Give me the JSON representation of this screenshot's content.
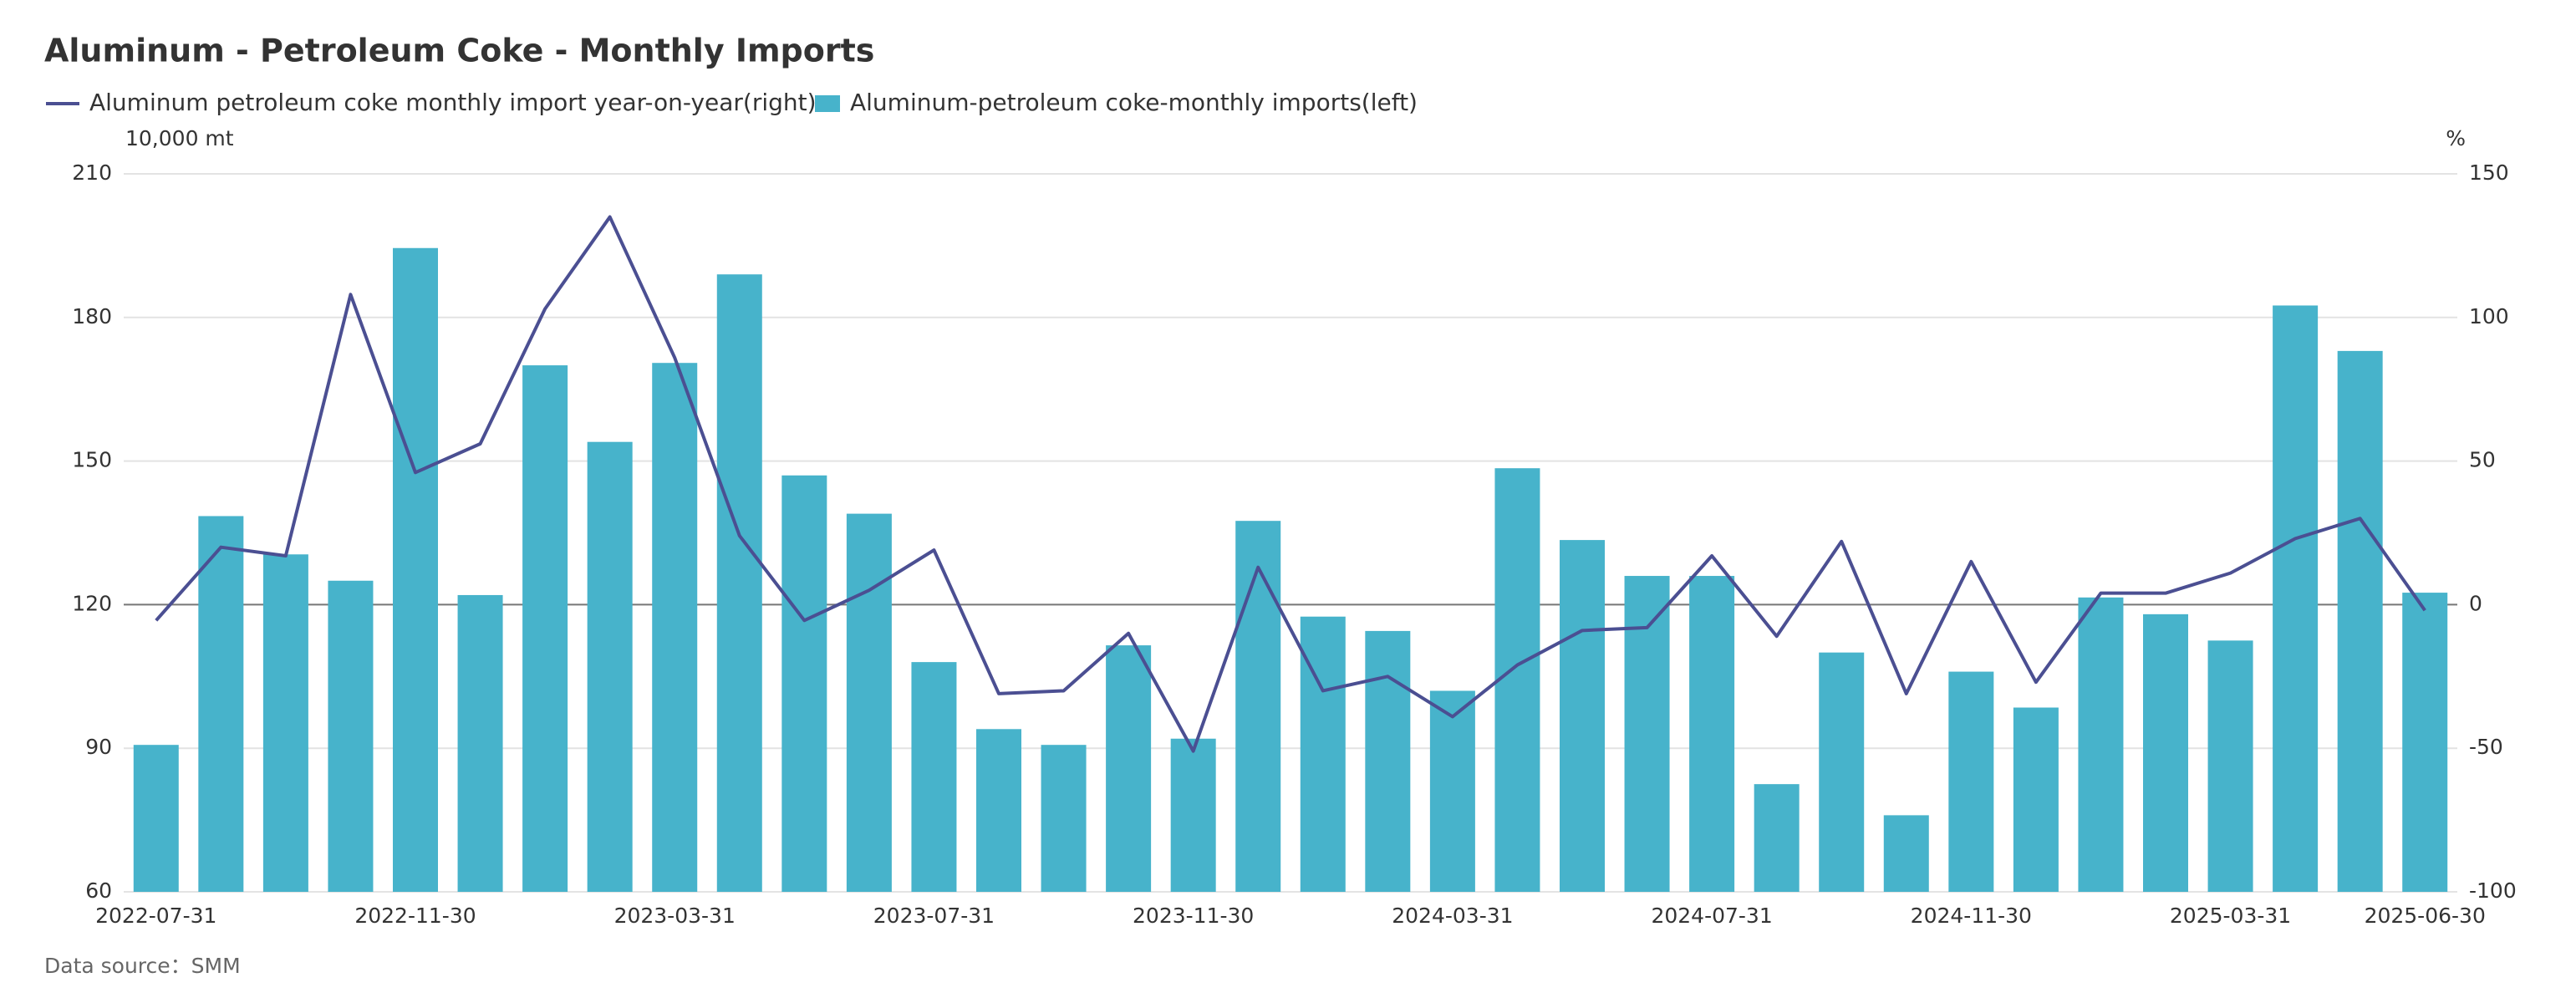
{
  "chart_data": {
    "type": "bar-line",
    "title": "Aluminum - Petroleum Coke - Monthly Imports",
    "y_label": "10,000 mt",
    "y2_label": "%",
    "source": "Data source：SMM",
    "categories": [
      "2022-07-31",
      null,
      null,
      null,
      "2022-11-30",
      null,
      null,
      null,
      "2023-03-31",
      null,
      null,
      null,
      "2023-07-31",
      null,
      null,
      null,
      "2023-11-30",
      null,
      null,
      null,
      "2024-03-31",
      null,
      null,
      null,
      "2024-07-31",
      null,
      null,
      null,
      "2024-11-30",
      null,
      null,
      null,
      "2025-03-31",
      null,
      null,
      "2025-06-30"
    ],
    "series": [
      {
        "name": "Aluminum petroleum coke monthly import year-on-year(right)",
        "type": "line",
        "axis": "y2",
        "color": "#4b4f92",
        "values": [
          -5.5,
          20,
          17,
          108,
          46,
          56,
          103,
          135,
          86,
          24,
          -5.5,
          5,
          19,
          -31,
          -30,
          -10,
          -51,
          13,
          -30,
          -25,
          -39,
          -21,
          -9,
          -8,
          17,
          -11,
          22,
          -31,
          15,
          -27,
          4,
          4,
          11,
          23,
          30,
          -2
        ]
      },
      {
        "name": "Aluminum-petroleum coke-monthly imports(left)",
        "type": "bar",
        "axis": "y",
        "color": "#47b3cb",
        "values": [
          90.7,
          138.5,
          130.5,
          125,
          194.5,
          122,
          170,
          154,
          170.5,
          189,
          147,
          139,
          108,
          94,
          90.7,
          111.5,
          92,
          137.5,
          117.5,
          114.5,
          102,
          148.5,
          133.5,
          126,
          126,
          82.5,
          110,
          76,
          106,
          98.5,
          121.5,
          118,
          112.5,
          182.5,
          173,
          122.5
        ]
      }
    ],
    "ylim": [
      60,
      210
    ],
    "yticks": [
      60,
      90,
      120,
      150,
      180,
      210
    ],
    "y2lim": [
      -100,
      150
    ],
    "y2ticks": [
      -100,
      -50,
      0,
      50,
      100,
      150
    ],
    "grid": true
  }
}
